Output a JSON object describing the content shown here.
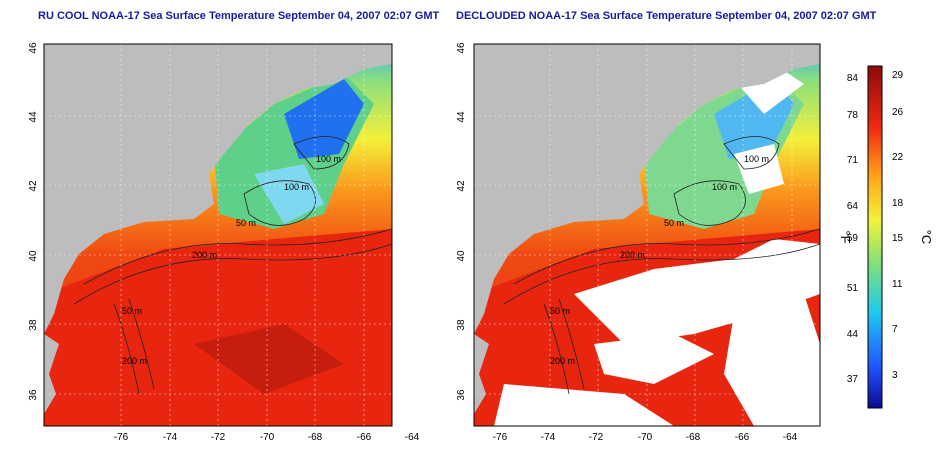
{
  "titles": {
    "left": "RU COOL NOAA-17 Sea Surface Temperature September 04, 2007 02:07 GMT",
    "right": "DECLOUDED NOAA-17 Sea Surface Temperature September 04, 2007 02:07 GMT"
  },
  "axes": {
    "x_ticks": [
      "-76",
      "-74",
      "-72",
      "-70",
      "-68",
      "-66",
      "-64"
    ],
    "y_ticks": [
      "46",
      "44",
      "42",
      "40",
      "38",
      "36"
    ]
  },
  "contour_labels": [
    "100 m",
    "100 m",
    "50 m",
    "200 m",
    "50 m",
    "200 m"
  ],
  "colorbar": {
    "fahrenheit_ticks": [
      "84",
      "78",
      "71",
      "64",
      "59",
      "51",
      "44",
      "37"
    ],
    "celsius_ticks": [
      "29",
      "26",
      "22",
      "18",
      "15",
      "11",
      "7",
      "3"
    ],
    "unit_f": "°F",
    "unit_c": "°C"
  },
  "colors": {
    "land": "#bdbdbd",
    "cloud": "#ffffff",
    "title": "#1a1aa0"
  }
}
